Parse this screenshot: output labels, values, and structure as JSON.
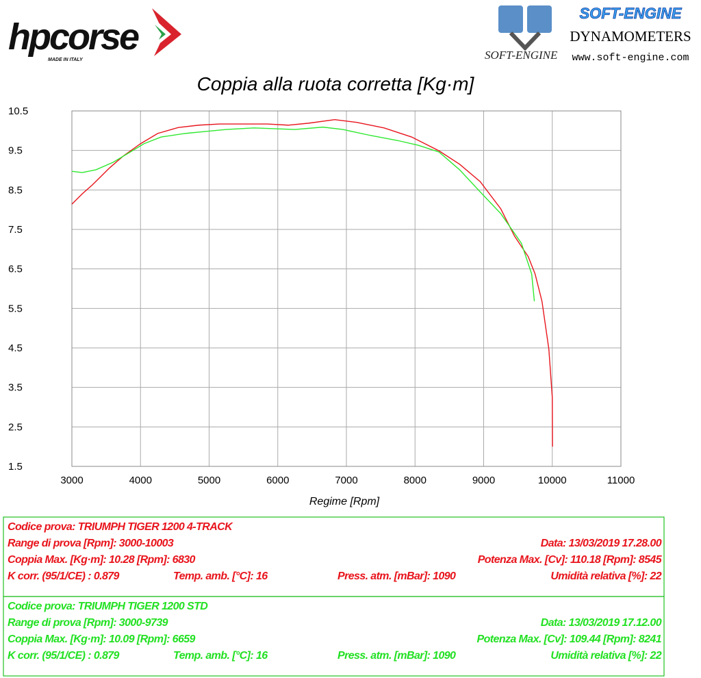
{
  "header": {
    "brand": "hpcorse",
    "brand_tagline": "MADE IN ITALY",
    "dyno_brand": "SOFT-ENGINE",
    "dyno_subtitle": "DYNAMOMETERS",
    "dyno_url": "www.soft-engine.com",
    "dyno_logo_text": "SOFT-ENGINE"
  },
  "chart_data": {
    "type": "line",
    "title": "Coppia alla ruota corretta [Kg·m]",
    "x_label": "Regime [Rpm]",
    "xlim": [
      3000,
      11000
    ],
    "xticks": [
      3000,
      4000,
      5000,
      6000,
      7000,
      8000,
      9000,
      10000,
      11000
    ],
    "ylim": [
      1.5,
      10.5
    ],
    "yticks": [
      1.5,
      2.5,
      3.5,
      4.5,
      5.5,
      6.5,
      7.5,
      8.5,
      9.5,
      10.5
    ],
    "grid": true,
    "series": [
      {
        "color": "#e8141c",
        "x": [
          3000,
          3150,
          3300,
          3550,
          3750,
          4000,
          4250,
          4550,
          4850,
          5150,
          5550,
          5850,
          6150,
          6450,
          6830,
          7150,
          7550,
          7950,
          8350,
          8650,
          8950,
          9250,
          9450,
          9650,
          9750,
          9850,
          9950,
          10000,
          10003
        ],
        "values": [
          8.14,
          8.4,
          8.63,
          9.06,
          9.36,
          9.67,
          9.93,
          10.08,
          10.14,
          10.17,
          10.17,
          10.17,
          10.14,
          10.19,
          10.28,
          10.21,
          10.07,
          9.84,
          9.49,
          9.15,
          8.71,
          8.02,
          7.33,
          6.81,
          6.37,
          5.68,
          4.47,
          3.25,
          2.0
        ]
      },
      {
        "color": "#2ee82e",
        "x": [
          3000,
          3150,
          3350,
          3600,
          3850,
          4050,
          4300,
          4650,
          4950,
          5250,
          5650,
          5950,
          6250,
          6659,
          6950,
          7350,
          7750,
          8050,
          8350,
          8650,
          8950,
          9250,
          9550,
          9700,
          9739
        ],
        "values": [
          8.97,
          8.94,
          9.01,
          9.2,
          9.46,
          9.67,
          9.84,
          9.93,
          9.98,
          10.03,
          10.07,
          10.05,
          10.03,
          10.09,
          10.03,
          9.88,
          9.75,
          9.63,
          9.46,
          9.01,
          8.45,
          7.9,
          7.15,
          6.37,
          5.68
        ]
      }
    ]
  },
  "info": [
    {
      "code": "Codice prova: TRIUMPH TIGER 1200 4-TRACK",
      "range": "Range di prova [Rpm]: 3000-10003",
      "date": "Data: 13/03/2019   17.28.00",
      "torque": "Coppia Max. [Kg·m]: 10.28   [Rpm]: 6830",
      "power": "Potenza Max. [Cv]: 110.18  [Rpm]: 8545",
      "k": "K corr. (95/1/CE) : 0.879",
      "temp": "Temp. amb. [°C]: 16",
      "press": "Press. atm. [mBar]: 1090",
      "hum": "Umidità relativa [%]: 22"
    },
    {
      "code": "Codice prova: TRIUMPH TIGER 1200 STD",
      "range": "Range di prova [Rpm]: 3000-9739",
      "date": "Data: 13/03/2019   17.12.00",
      "torque": "Coppia Max. [Kg·m]: 10.09   [Rpm]: 6659",
      "power": "Potenza Max. [Cv]: 109.44  [Rpm]: 8241",
      "k": "K corr. (95/1/CE) : 0.879",
      "temp": "Temp. amb. [°C]: 16",
      "press": "Press. atm. [mBar]: 1090",
      "hum": "Umidità relativa [%]: 22"
    }
  ]
}
